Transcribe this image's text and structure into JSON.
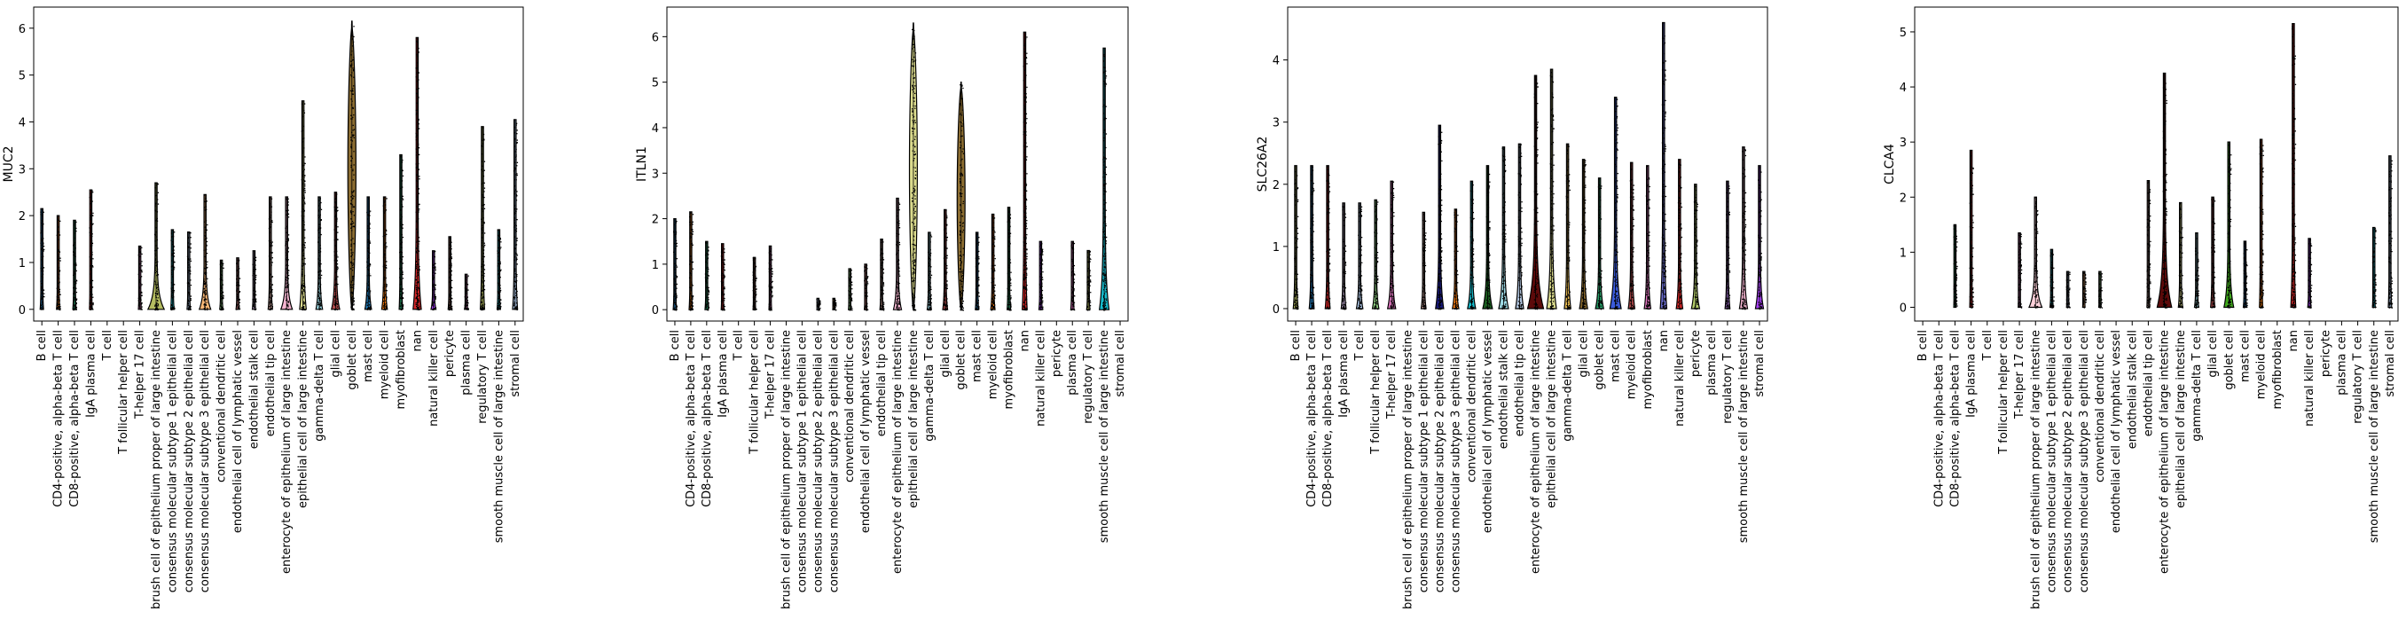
{
  "chart_data": [
    {
      "type": "violin",
      "ylabel": "MUC2",
      "ylim": [
        -0.25,
        6.45
      ],
      "yticks": [
        0,
        1,
        2,
        3,
        4,
        5,
        6
      ],
      "grid": false,
      "categories": [
        "B cell",
        "CD4-positive, alpha-beta T cell",
        "CD8-positive, alpha-beta T cell",
        "IgA plasma cell",
        "T cell",
        "T follicular helper cell",
        "T-helper 17 cell",
        "brush cell of epithelium proper of large intestine",
        "consensus molecular subtype 1 epithelial cell",
        "consensus molecular subtype 2 epithelial cell",
        "consensus molecular subtype 3 epithelial cell",
        "conventional dendritic cell",
        "endothelial cell of lymphatic vessel",
        "endothelial stalk cell",
        "endothelial tip cell",
        "enterocyte of epithelium of large intestine",
        "epithelial cell of large intestine",
        "gamma-delta T cell",
        "glial cell",
        "goblet cell",
        "mast cell",
        "myeloid cell",
        "myofibroblast",
        "nan",
        "natural killer cell",
        "pericyte",
        "plasma cell",
        "regulatory T cell",
        "smooth muscle cell of large intestine",
        "stromal cell"
      ],
      "max": [
        2.15,
        2.0,
        1.9,
        2.55,
        0,
        0,
        1.35,
        2.7,
        1.7,
        1.65,
        2.45,
        1.05,
        1.1,
        1.25,
        2.4,
        2.4,
        4.45,
        2.4,
        2.5,
        6.15,
        2.4,
        2.4,
        3.3,
        5.8,
        1.25,
        1.55,
        0.75,
        3.9,
        1.7,
        4.05
      ],
      "width": [
        0.05,
        0.05,
        0.05,
        0.03,
        0,
        0,
        0.03,
        0.45,
        0.05,
        0.05,
        0.3,
        0.05,
        0.05,
        0.05,
        0.08,
        0.3,
        0.15,
        0.15,
        0.2,
        0.35,
        0.15,
        0.12,
        0.05,
        0.2,
        0.1,
        0.05,
        0.05,
        0.08,
        0.05,
        0.1
      ],
      "colors": [
        "#1f77b4",
        "#ff7f0e",
        "#279e68",
        "#d62728",
        "#aa40fc",
        "#8c564b",
        "#e377c2",
        "#b5bd61",
        "#17becf",
        "#aec7e8",
        "#ffbb78",
        "#98df8a",
        "#ff9896",
        "#c5b0d5",
        "#c49c94",
        "#f7b6d2",
        "#dbdb8d",
        "#9edae5",
        "#ad494a",
        "#8c6d31",
        "#1f77b4",
        "#ff7f0e",
        "#279e68",
        "#d62728",
        "#aa40fc",
        "#8c564b",
        "#e377c2",
        "#b5bd61",
        "#17becf",
        "#aec7e8"
      ]
    },
    {
      "type": "violin",
      "ylabel": "ITLN1",
      "ylim": [
        -0.25,
        6.65
      ],
      "yticks": [
        0,
        1,
        2,
        3,
        4,
        5,
        6
      ],
      "grid": false,
      "categories": [
        "B cell",
        "CD4-positive, alpha-beta T cell",
        "CD8-positive, alpha-beta T cell",
        "IgA plasma cell",
        "T cell",
        "T follicular helper cell",
        "T-helper 17 cell",
        "brush cell of epithelium proper of large intestine",
        "consensus molecular subtype 1 epithelial cell",
        "consensus molecular subtype 2 epithelial cell",
        "consensus molecular subtype 3 epithelial cell",
        "conventional dendritic cell",
        "endothelial cell of lymphatic vessel",
        "endothelial tip cell",
        "enterocyte of epithelium of large intestine",
        "epithelial cell of large intestine",
        "gamma-delta T cell",
        "glial cell",
        "goblet cell",
        "mast cell",
        "myeloid cell",
        "myofibroblast",
        "nan",
        "natural killer cell",
        "pericyte",
        "plasma cell",
        "regulatory T cell",
        "smooth muscle cell of large intestine",
        "stromal cell"
      ],
      "max": [
        2.0,
        2.15,
        1.5,
        1.45,
        0,
        1.15,
        1.4,
        0,
        0,
        0.25,
        0.25,
        0.9,
        1.0,
        1.55,
        2.45,
        6.3,
        1.7,
        2.2,
        5.0,
        1.7,
        2.1,
        2.25,
        6.1,
        1.5,
        0,
        1.5,
        1.3,
        5.75,
        0
      ],
      "width": [
        0.05,
        0.05,
        0.05,
        0.03,
        0,
        0.03,
        0.03,
        0,
        0,
        0.02,
        0.02,
        0.03,
        0.03,
        0.05,
        0.2,
        0.3,
        0.08,
        0.1,
        0.3,
        0.05,
        0.08,
        0.05,
        0.1,
        0.05,
        0,
        0.05,
        0.05,
        0.25,
        0.03
      ],
      "colors": [
        "#1f77b4",
        "#ff7f0e",
        "#279e68",
        "#d62728",
        "#aa40fc",
        "#8c564b",
        "#e377c2",
        "#b5bd61",
        "#17becf",
        "#aec7e8",
        "#ffbb78",
        "#98df8a",
        "#ff9896",
        "#c49c94",
        "#f7b6d2",
        "#dbdb8d",
        "#9edae5",
        "#ad494a",
        "#8c6d31",
        "#1f77b4",
        "#ff7f0e",
        "#279e68",
        "#d62728",
        "#aa40fc",
        "#8c564b",
        "#e377c2",
        "#b5bd61",
        "#17becf",
        "#aec7e8"
      ]
    },
    {
      "type": "violin",
      "ylabel": "SLC26A2",
      "ylim": [
        -0.2,
        4.85
      ],
      "yticks": [
        0,
        1,
        2,
        3,
        4
      ],
      "grid": false,
      "categories": [
        "B cell",
        "CD4-positive, alpha-beta T cell",
        "CD8-positive, alpha-beta T cell",
        "IgA plasma cell",
        "T cell",
        "T follicular helper cell",
        "T-helper 17 cell",
        "brush cell of epithelium proper of large intestine",
        "consensus molecular subtype 1 epithelial cell",
        "consensus molecular subtype 2 epithelial cell",
        "consensus molecular subtype 3 epithelial cell",
        "conventional dendritic cell",
        "endothelial cell of lymphatic vessel",
        "endothelial stalk cell",
        "endothelial tip cell",
        "enterocyte of epithelium of large intestine",
        "epithelial cell of large intestine",
        "gamma-delta T cell",
        "glial cell",
        "goblet cell",
        "mast cell",
        "myeloid cell",
        "myofibroblast",
        "nan",
        "natural killer cell",
        "pericyte",
        "plasma cell",
        "regulatory T cell",
        "smooth muscle cell of large intestine",
        "stromal cell"
      ],
      "max": [
        2.3,
        2.3,
        2.3,
        1.7,
        1.7,
        1.75,
        2.05,
        0,
        1.55,
        2.95,
        1.6,
        2.05,
        2.3,
        2.6,
        2.65,
        3.75,
        3.85,
        2.65,
        2.4,
        2.1,
        3.4,
        2.35,
        2.3,
        4.6,
        2.4,
        2.0,
        0,
        2.05,
        2.6,
        2.3
      ],
      "width": [
        0.1,
        0.1,
        0.1,
        0.1,
        0.15,
        0.15,
        0.2,
        0,
        0.1,
        0.2,
        0.15,
        0.2,
        0.25,
        0.25,
        0.2,
        0.45,
        0.25,
        0.15,
        0.2,
        0.2,
        0.3,
        0.15,
        0.15,
        0.15,
        0.15,
        0.2,
        0,
        0.1,
        0.2,
        0.2
      ],
      "colors": [
        "#b5bd61",
        "#1f77b4",
        "#d62728",
        "#c5b0d5",
        "#aec7e8",
        "#98df8a",
        "#e377c2",
        "#ff9896",
        "#c49c94",
        "#1a1a7e",
        "#ff7f0e",
        "#17becf",
        "#1b5e20",
        "#9edae5",
        "#b0c4de",
        "#5c0a0a",
        "#dbdb8d",
        "#e7ba52",
        "#8c6d31",
        "#279e68",
        "#3b5bdb",
        "#ad494a",
        "#e377c2",
        "#6b6ecf",
        "#d62728",
        "#b5cf6b",
        "#ffbb78",
        "#9467bd",
        "#f7b6d2",
        "#aa40fc"
      ]
    },
    {
      "type": "violin",
      "ylabel": "CLCA4",
      "ylim": [
        -0.25,
        5.45
      ],
      "yticks": [
        0,
        1,
        2,
        3,
        4,
        5
      ],
      "grid": false,
      "categories": [
        "B cell",
        "CD4-positive, alpha-beta T cell",
        "CD8-positive, alpha-beta T cell",
        "IgA plasma cell",
        "T cell",
        "T follicular helper cell",
        "T-helper 17 cell",
        "brush cell of epithelium proper of large intestine",
        "consensus molecular subtype 1 epithelial cell",
        "consensus molecular subtype 2 epithelial cell",
        "consensus molecular subtype 3 epithelial cell",
        "conventional dendritic cell",
        "endothelial cell of lymphatic vessel",
        "endothelial stalk cell",
        "endothelial tip cell",
        "enterocyte of epithelium of large intestine",
        "epithelial cell of large intestine",
        "gamma-delta T cell",
        "glial cell",
        "goblet cell",
        "mast cell",
        "myeloid cell",
        "myofibroblast",
        "nan",
        "natural killer cell",
        "pericyte",
        "plasma cell",
        "regulatory T cell",
        "smooth muscle cell of large intestine",
        "stromal cell"
      ],
      "max": [
        0,
        0,
        1.5,
        2.85,
        0,
        0,
        1.35,
        2.0,
        1.05,
        0.65,
        0.65,
        0.65,
        0,
        0,
        2.3,
        4.25,
        1.9,
        1.35,
        2.0,
        3.0,
        1.2,
        3.05,
        0,
        5.15,
        1.25,
        0,
        0,
        0,
        1.45,
        2.75
      ],
      "width": [
        0,
        0,
        0.02,
        0.03,
        0,
        0,
        0.02,
        0.35,
        0.05,
        0.02,
        0.02,
        0.02,
        0,
        0,
        0.03,
        0.4,
        0.08,
        0.08,
        0.08,
        0.25,
        0.05,
        0.05,
        0,
        0.1,
        0.05,
        0,
        0,
        0,
        0.03,
        0.05
      ],
      "colors": [
        "#1f77b4",
        "#ff7f0e",
        "#279e68",
        "#d62728",
        "#aa40fc",
        "#8c564b",
        "#e377c2",
        "#fdd0d9",
        "#17becf",
        "#aec7e8",
        "#ffbb78",
        "#98df8a",
        "#ff9896",
        "#c5b0d5",
        "#c49c94",
        "#5c0a0a",
        "#dbdb8d",
        "#9edae5",
        "#ad494a",
        "#3fa81c",
        "#1f77b4",
        "#ff7f0e",
        "#279e68",
        "#d62728",
        "#aa40fc",
        "#8c564b",
        "#e377c2",
        "#b5bd61",
        "#17becf",
        "#aec7e8"
      ]
    }
  ]
}
